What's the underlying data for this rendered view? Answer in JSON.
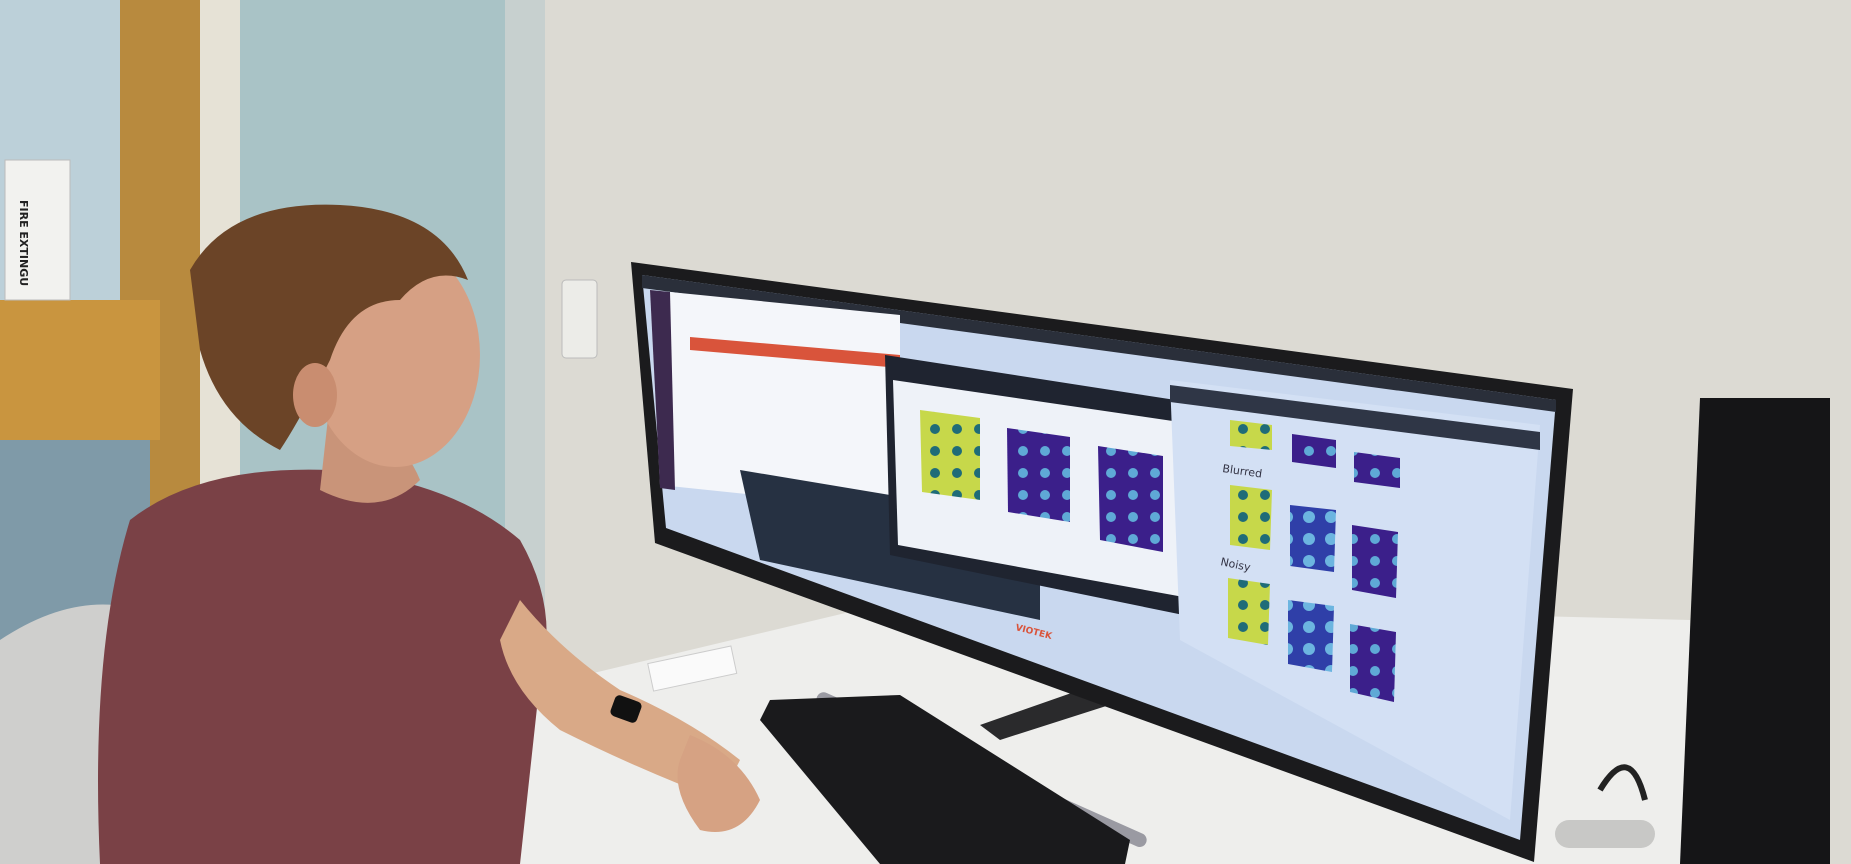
{
  "scene": {
    "door_sign": "FIRE EXTINGU",
    "monitor_brand": "VIOTEK",
    "screen": {
      "section_labels": [
        "Blurred",
        "Noisy"
      ]
    }
  },
  "colors": {
    "wall": "#dcdad3",
    "teal_wall": "#a9c3c6",
    "door_wood": "#c9953f",
    "shirt": "#7a4146",
    "hair": "#6b4427",
    "screen_bg": "#c9d8ef",
    "plot_yellow": "#c7d84a",
    "plot_purple": "#3b1f8a",
    "plot_blue": "#2f3fa8",
    "window_header": "#2a2f3a",
    "accent_red": "#d9543b"
  }
}
